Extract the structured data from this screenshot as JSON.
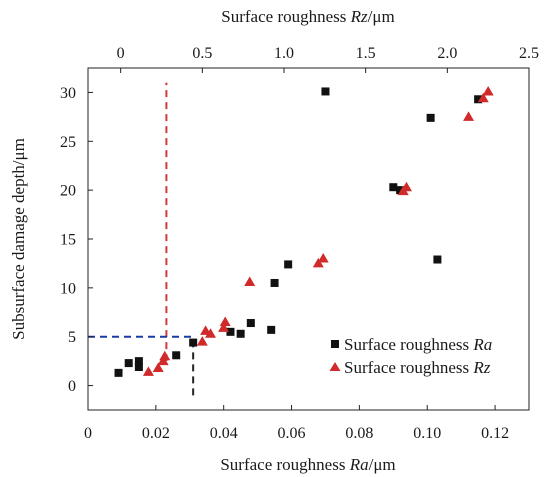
{
  "chart_data": {
    "type": "scatter",
    "x_bottom": {
      "label_prefix": "Surface roughness ",
      "label_var": "Ra",
      "label_suffix": "/μm",
      "ticks": [
        "0",
        "0.02",
        "0.04",
        "0.06",
        "0.08",
        "0.10",
        "0.12"
      ],
      "tick_values": [
        0,
        0.02,
        0.04,
        0.06,
        0.08,
        0.1,
        0.12
      ],
      "range": [
        0,
        0.13
      ]
    },
    "x_top": {
      "label_prefix": "Surface roughness ",
      "label_var": "Rz",
      "label_suffix": "/μm",
      "ticks": [
        "0",
        "0.5",
        "1.0",
        "1.5",
        "2.0",
        "2.5"
      ],
      "tick_values": [
        0,
        0.5,
        1.0,
        1.5,
        2.0,
        2.5
      ],
      "range": [
        -0.2,
        2.5
      ]
    },
    "y": {
      "label": "Subsurface damage depth/μm",
      "ticks": [
        "0",
        "5",
        "10",
        "15",
        "20",
        "25",
        "30"
      ],
      "tick_values": [
        0,
        5,
        10,
        15,
        20,
        25,
        30
      ],
      "range": [
        -2.5,
        32.5
      ]
    },
    "series": [
      {
        "name_prefix": "Surface roughness ",
        "name_var": "Ra",
        "marker": "square",
        "color": "#111111",
        "axis": "bottom",
        "points": [
          [
            0.009,
            1.3
          ],
          [
            0.012,
            2.3
          ],
          [
            0.015,
            1.9
          ],
          [
            0.015,
            2.5
          ],
          [
            0.026,
            3.1
          ],
          [
            0.031,
            4.4
          ],
          [
            0.042,
            5.5
          ],
          [
            0.045,
            5.3
          ],
          [
            0.048,
            6.4
          ],
          [
            0.054,
            5.7
          ],
          [
            0.055,
            10.5
          ],
          [
            0.059,
            12.4
          ],
          [
            0.07,
            30.1
          ],
          [
            0.09,
            20.3
          ],
          [
            0.092,
            20.0
          ],
          [
            0.101,
            27.4
          ],
          [
            0.103,
            12.9
          ],
          [
            0.115,
            29.3
          ]
        ]
      },
      {
        "name_prefix": "Surface roughness ",
        "name_var": "Rz",
        "marker": "triangle",
        "color": "#d02a2a",
        "axis": "top",
        "points": [
          [
            0.17,
            1.4
          ],
          [
            0.23,
            1.8
          ],
          [
            0.26,
            2.5
          ],
          [
            0.27,
            3.0
          ],
          [
            0.5,
            4.5
          ],
          [
            0.52,
            5.6
          ],
          [
            0.55,
            5.3
          ],
          [
            0.63,
            5.9
          ],
          [
            0.64,
            6.5
          ],
          [
            0.79,
            10.6
          ],
          [
            1.21,
            12.5
          ],
          [
            1.24,
            13.0
          ],
          [
            1.73,
            19.9
          ],
          [
            1.75,
            20.3
          ],
          [
            2.13,
            27.5
          ],
          [
            2.22,
            29.4
          ],
          [
            2.25,
            30.1
          ]
        ]
      }
    ],
    "reference_lines": [
      {
        "orientation": "vertical",
        "axis": "top",
        "x": 0.28,
        "y_from": 2.5,
        "y_to": 31.0,
        "color": "#d03a3a",
        "style": "dashed"
      },
      {
        "orientation": "horizontal",
        "axis": "bottom",
        "y": 5.0,
        "x_from": 0.0,
        "x_to": 0.031,
        "color": "#1a3aa8",
        "style": "dashed"
      },
      {
        "orientation": "vertical",
        "axis": "bottom",
        "x": 0.031,
        "y_from": -1.0,
        "y_to": 4.4,
        "color": "#222222",
        "style": "dashed"
      }
    ],
    "legend_placement": "bottom-right",
    "grid": false
  }
}
